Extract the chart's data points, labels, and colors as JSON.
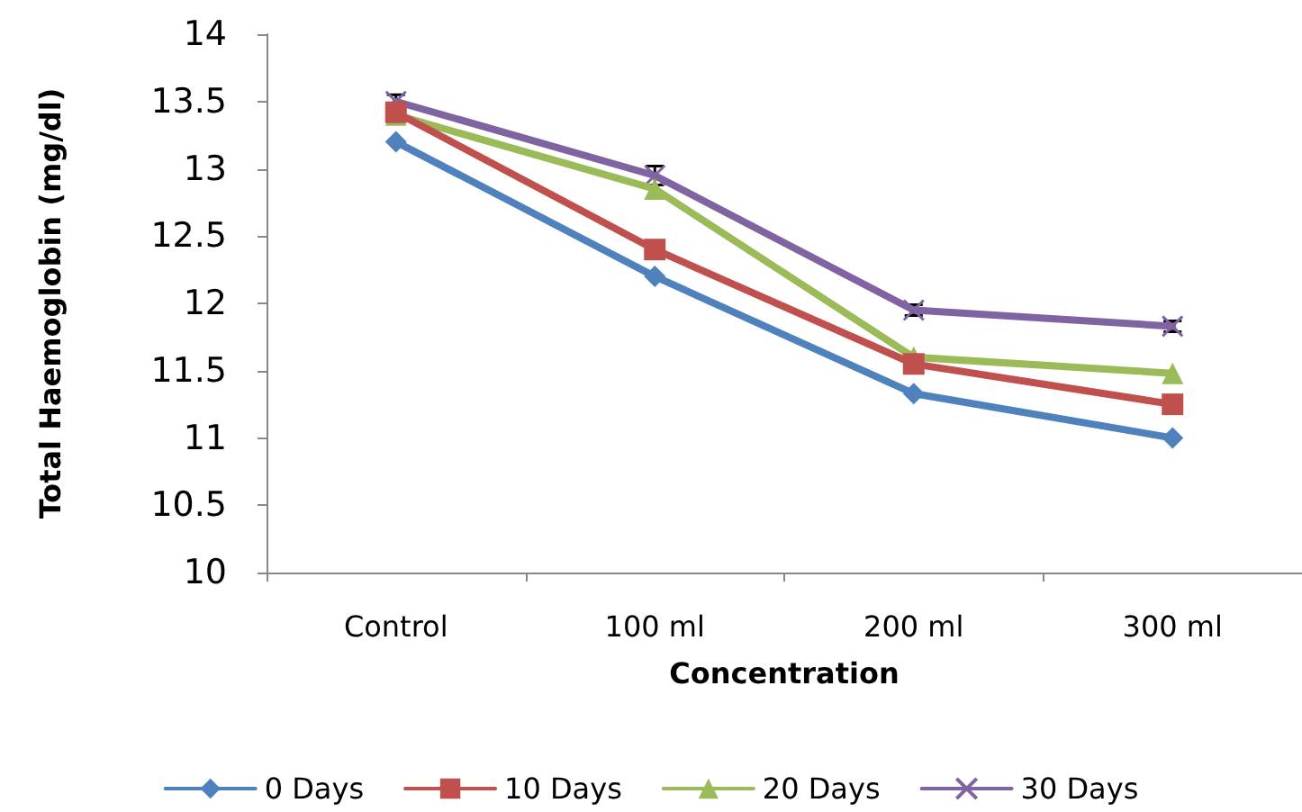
{
  "chart_data": {
    "type": "line",
    "xlabel": "Concentration",
    "ylabel": "Total Haemoglobin (mg/dl)",
    "categories": [
      "Control",
      "100 ml",
      "200 ml",
      "300 ml"
    ],
    "series": [
      {
        "name": "0 Days",
        "color": "#4f81bd",
        "marker": "diamond",
        "values": [
          13.2,
          12.2,
          11.33,
          11.0
        ]
      },
      {
        "name": "10 Days",
        "color": "#c0504d",
        "marker": "square",
        "values": [
          13.42,
          12.4,
          11.55,
          11.25
        ]
      },
      {
        "name": "20 Days",
        "color": "#9bbb59",
        "marker": "triangle",
        "values": [
          13.4,
          12.85,
          11.6,
          11.48
        ]
      },
      {
        "name": "30 Days",
        "color": "#8064a2",
        "marker": "cross",
        "values": [
          13.5,
          12.95,
          11.95,
          11.83
        ],
        "errors": [
          0.05,
          0.07,
          0.04,
          0.04
        ]
      }
    ],
    "ylim": [
      10,
      14
    ],
    "yticks": [
      10,
      10.5,
      11,
      11.5,
      12,
      12.5,
      13,
      13.5,
      14
    ],
    "grid": false,
    "legend": "bottom",
    "line_style": "solid"
  }
}
